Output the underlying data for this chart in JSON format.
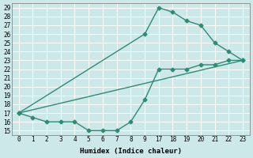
{
  "xlabel": "Humidex (Indice chaleur)",
  "bg_color": "#cce8e8",
  "grid_color": "#ffffff",
  "line_color": "#2e8b74",
  "ylim": [
    14.5,
    29.5
  ],
  "xtick_labels": [
    "0",
    "1",
    "2",
    "3",
    "4",
    "5",
    "6",
    "7",
    "8",
    "9",
    "17",
    "18",
    "19",
    "20",
    "21",
    "22",
    "23"
  ],
  "ytick_labels": [
    "15",
    "16",
    "17",
    "18",
    "19",
    "20",
    "21",
    "22",
    "23",
    "24",
    "25",
    "26",
    "27",
    "28",
    "29"
  ],
  "ytick_vals": [
    15,
    16,
    17,
    18,
    19,
    20,
    21,
    22,
    23,
    24,
    25,
    26,
    27,
    28,
    29
  ],
  "line1_xi": [
    0,
    9,
    10,
    11,
    12,
    13,
    14,
    15,
    16
  ],
  "line1_y": [
    17,
    26,
    29,
    28.5,
    27.5,
    27,
    25,
    24,
    23
  ],
  "line2_xi": [
    0,
    1,
    2,
    3,
    4,
    5,
    6,
    7,
    8,
    9,
    10,
    11,
    12,
    13,
    14,
    15,
    16
  ],
  "line2_y": [
    17,
    16.5,
    16,
    16,
    16,
    15,
    15,
    15,
    16,
    18.5,
    22,
    22,
    22,
    22.5,
    22.5,
    23,
    23
  ],
  "line3_xi": [
    0,
    16
  ],
  "line3_y": [
    17,
    23
  ],
  "marker_line1_xi": [
    0,
    9,
    10,
    11,
    12,
    13,
    14,
    15,
    16
  ],
  "marker_line1_y": [
    17,
    26,
    29,
    28.5,
    27.5,
    27,
    25,
    24,
    23
  ],
  "marker_line2_xi": [
    0,
    1,
    2,
    3,
    4,
    5,
    6,
    7,
    8,
    9,
    10,
    11,
    12,
    13,
    14,
    15,
    16
  ],
  "marker_line2_y": [
    17,
    16.5,
    16,
    16,
    16,
    15,
    15,
    15,
    16,
    18.5,
    22,
    22,
    22,
    22.5,
    22.5,
    23,
    23
  ],
  "xlabel_fontsize": 6.5,
  "tick_fontsize": 5.5
}
